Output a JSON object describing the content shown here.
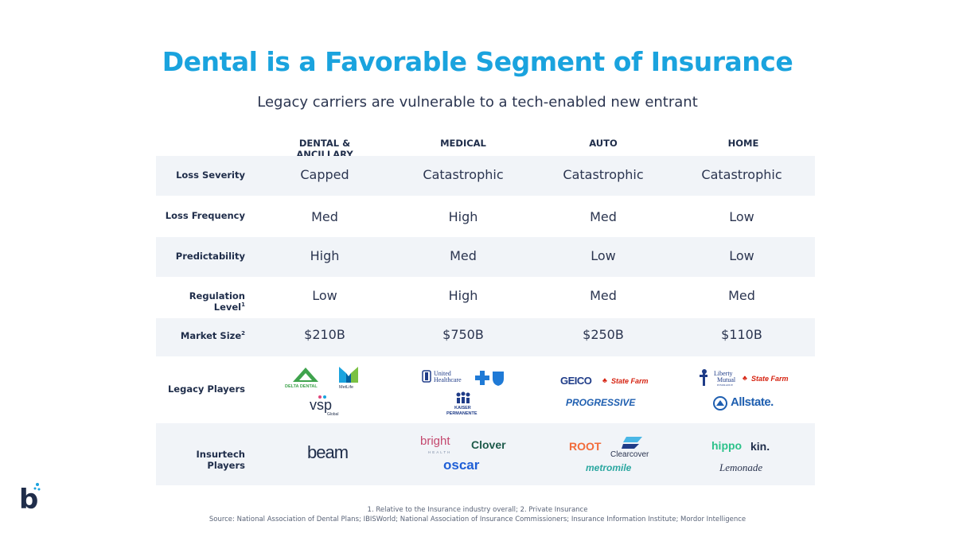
{
  "title": "Dental is a Favorable Segment of Insurance",
  "subtitle": "Legacy carriers are vulnerable to a tech-enabled new entrant",
  "columns": [
    "DENTAL & ANCILLARY",
    "MEDICAL",
    "AUTO",
    "HOME"
  ],
  "rows": [
    {
      "label": "Loss Severity",
      "sup": "",
      "values": [
        "Capped",
        "Catastrophic",
        "Catastrophic",
        "Catastrophic"
      ]
    },
    {
      "label": "Loss Frequency",
      "sup": "",
      "values": [
        "Med",
        "High",
        "Med",
        "Low"
      ]
    },
    {
      "label": "Predictability",
      "sup": "",
      "values": [
        "High",
        "Med",
        "Low",
        "Low"
      ]
    },
    {
      "label": "Regulation Level",
      "sup": "1",
      "values": [
        "Low",
        "High",
        "Med",
        "Med"
      ]
    },
    {
      "label": "Market Size",
      "sup": "2",
      "values": [
        "$210B",
        "$750B",
        "$250B",
        "$110B"
      ]
    }
  ],
  "legacy": {
    "label": "Legacy Players",
    "dental": {
      "delta": "DELTA DENTAL",
      "metlife": "MetLife",
      "vsp": "vsp",
      "vsp_sub": "Global"
    },
    "medical": {
      "united": "United",
      "united2": "Healthcare",
      "kaiser": "KAISER",
      "kaiser2": "PERMANENTE"
    },
    "auto": {
      "geico": "GEICO",
      "statefarm": "State Farm",
      "progressive": "PROGRESSIVE"
    },
    "home": {
      "liberty": "Liberty",
      "liberty2": "Mutual",
      "liberty3": "INSURANCE",
      "statefarm": "State Farm",
      "allstate": "Allstate."
    }
  },
  "insurtech": {
    "label": "Insurtech Players",
    "dental": {
      "beam": "beam"
    },
    "medical": {
      "bright": "bright",
      "bright_sub": "HEALTH",
      "clover": "Clover",
      "oscar": "oscar"
    },
    "auto": {
      "root": "ROOT",
      "clearcover": "Clearcover",
      "metromile": "metromile"
    },
    "home": {
      "hippo": "hippo",
      "kin": "kin.",
      "lemonade": "Lemonade"
    }
  },
  "brand": {
    "letter": "b"
  },
  "footnotes": {
    "line1": "1. Relative to the Insurance industry overall; 2. Private Insurance",
    "line2": "Source: National Association of Dental Plans; IBISWorld; National Association of Insurance Commissioners; Insurance Information Institute; Mordor Intelligence"
  },
  "colors": {
    "accent": "#1aa3de",
    "text": "#1f2d4a",
    "shade": "#f1f4f8"
  }
}
